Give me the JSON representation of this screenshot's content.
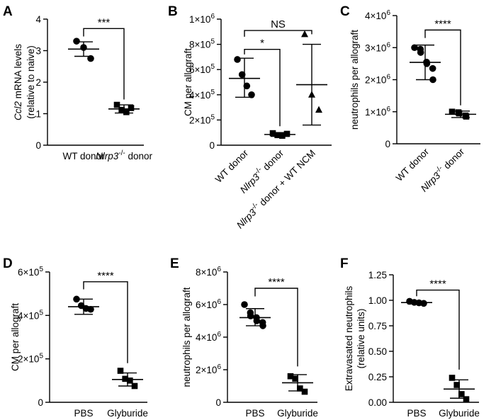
{
  "chart_data": [
    {
      "panel": "A",
      "type": "scatter",
      "ylabel_italic": "Ccl2",
      "ylabel_rest": " mRNA levels",
      "ylabel2": "(relative to naive)",
      "categories": [
        {
          "text": "WT donor",
          "sup": "",
          "after": ""
        },
        {
          "text": "Nlrp3",
          "sup": "-/-",
          "after": " donor",
          "italic": true
        }
      ],
      "ylim": [
        0,
        4
      ],
      "yticks": [
        {
          "v": 0,
          "t": "0"
        },
        {
          "v": 1,
          "t": "1"
        },
        {
          "v": 2,
          "t": "2"
        },
        {
          "v": 3,
          "t": "3"
        },
        {
          "v": 4,
          "t": "4"
        }
      ],
      "groups": [
        {
          "marker": "circle",
          "points": [
            3.3,
            3.1,
            2.75
          ],
          "mean": 3.05,
          "err": [
            2.82,
            3.28
          ]
        },
        {
          "marker": "square",
          "points": [
            1.28,
            1.12,
            1.05,
            1.18
          ],
          "mean": 1.15,
          "err": [
            1.02,
            1.28
          ]
        }
      ],
      "brackets": [
        {
          "from": 0,
          "to": 1,
          "label": "***",
          "y": 3.7,
          "drop_left": 3.45,
          "drop_right": 1.45
        }
      ]
    },
    {
      "panel": "B",
      "type": "scatter",
      "ylabel": "CM per allograft",
      "categories": [
        {
          "text": "WT donor",
          "sup": "",
          "after": ""
        },
        {
          "text": "Nlrp3",
          "sup": "-/-",
          "after": " donor",
          "italic": true
        },
        {
          "text": "Nlrp3",
          "sup": "-/-",
          "after": " donor + WT NCM",
          "italic": true
        }
      ],
      "ylim": [
        0,
        1000000
      ],
      "yticks": [
        {
          "v": 0,
          "t": "0"
        },
        {
          "v": 200000,
          "base": "2×10",
          "exp": "5"
        },
        {
          "v": 400000,
          "base": "4×10",
          "exp": "5"
        },
        {
          "v": 600000,
          "base": "6×10",
          "exp": "5"
        },
        {
          "v": 800000,
          "base": "8×10",
          "exp": "5"
        },
        {
          "v": 1000000,
          "base": "1×10",
          "exp": "6"
        }
      ],
      "groups": [
        {
          "marker": "circle",
          "points": [
            680000,
            560000,
            470000,
            400000
          ],
          "mean": 530000,
          "err": [
            380000,
            690000
          ]
        },
        {
          "marker": "square",
          "points": [
            95000,
            80000,
            75000,
            90000
          ],
          "mean": 85000,
          "err": [
            70000,
            100000
          ]
        },
        {
          "marker": "triangle",
          "points": [
            880000,
            400000,
            280000
          ],
          "mean": 480000,
          "err": [
            160000,
            800000
          ]
        }
      ],
      "brackets": [
        {
          "from": 0,
          "to": 1,
          "label": "*",
          "y": 760000,
          "drop_left": 720000,
          "drop_right": 150000
        },
        {
          "from": 0,
          "to": 2,
          "label": "NS",
          "y": 910000,
          "drop_left": 860000,
          "drop_right": 880000
        }
      ]
    },
    {
      "panel": "C",
      "type": "scatter",
      "ylabel": "neutrophils per allograft",
      "categories": [
        {
          "text": "WT donor",
          "sup": "",
          "after": ""
        },
        {
          "text": "Nlrp3",
          "sup": "-/-",
          "after": " donor",
          "italic": true
        }
      ],
      "ylim": [
        0,
        4000000
      ],
      "yticks": [
        {
          "v": 0,
          "t": "0"
        },
        {
          "v": 1000000,
          "base": "1×10",
          "exp": "6"
        },
        {
          "v": 2000000,
          "base": "2×10",
          "exp": "6"
        },
        {
          "v": 3000000,
          "base": "3×10",
          "exp": "6"
        },
        {
          "v": 4000000,
          "base": "4×10",
          "exp": "6"
        }
      ],
      "groups": [
        {
          "marker": "circle",
          "points": [
            3000000,
            2950000,
            2850000,
            2550000,
            2500000,
            2350000,
            2000000
          ],
          "mean": 2540000,
          "err": [
            2000000,
            3080000
          ]
        },
        {
          "marker": "square",
          "points": [
            1000000,
            980000,
            950000,
            880000,
            850000
          ],
          "mean": 920000,
          "err": [
            820000,
            1020000
          ]
        }
      ],
      "brackets": [
        {
          "from": 0,
          "to": 1,
          "label": "****",
          "y": 3550000,
          "drop_left": 3300000,
          "drop_right": 1200000
        }
      ]
    },
    {
      "panel": "D",
      "type": "scatter",
      "ylabel": "CM per allograft",
      "categories": [
        {
          "text": "PBS",
          "sup": "",
          "after": ""
        },
        {
          "text": "Glyburide",
          "sup": "",
          "after": ""
        }
      ],
      "ylim": [
        0,
        600000
      ],
      "yticks": [
        {
          "v": 0,
          "t": "0"
        },
        {
          "v": 200000,
          "base": "2×10",
          "exp": "5"
        },
        {
          "v": 400000,
          "base": "4×10",
          "exp": "5"
        },
        {
          "v": 600000,
          "base": "6×10",
          "exp": "5"
        }
      ],
      "groups": [
        {
          "marker": "circle",
          "points": [
            475000,
            445000,
            432000,
            428000
          ],
          "mean": 440000,
          "err": [
            405000,
            475000
          ]
        },
        {
          "marker": "square",
          "points": [
            145000,
            108000,
            100000,
            75000
          ],
          "mean": 105000,
          "err": [
            75000,
            135000
          ]
        }
      ],
      "brackets": [
        {
          "from": 0,
          "to": 1,
          "label": "****",
          "y": 555000,
          "drop_left": 520000,
          "drop_right": 180000
        }
      ]
    },
    {
      "panel": "E",
      "type": "scatter",
      "ylabel": "neutrophils per allograft",
      "categories": [
        {
          "text": "PBS",
          "sup": "",
          "after": ""
        },
        {
          "text": "Glyburide",
          "sup": "",
          "after": ""
        }
      ],
      "ylim": [
        0,
        8000000
      ],
      "yticks": [
        {
          "v": 0,
          "t": "0"
        },
        {
          "v": 2000000,
          "base": "2×10",
          "exp": "6"
        },
        {
          "v": 4000000,
          "base": "4×10",
          "exp": "6"
        },
        {
          "v": 6000000,
          "base": "6×10",
          "exp": "6"
        },
        {
          "v": 8000000,
          "base": "8×10",
          "exp": "6"
        }
      ],
      "groups": [
        {
          "marker": "circle",
          "points": [
            6000000,
            5500000,
            5300000,
            5200000,
            5000000,
            4900000,
            4700000
          ],
          "mean": 5200000,
          "err": [
            4700000,
            5750000
          ]
        },
        {
          "marker": "square",
          "points": [
            1600000,
            1450000,
            850000,
            650000
          ],
          "mean": 1200000,
          "err": [
            700000,
            1700000
          ]
        }
      ],
      "brackets": [
        {
          "from": 0,
          "to": 1,
          "label": "****",
          "y": 7000000,
          "drop_left": 6500000,
          "drop_right": 2200000
        }
      ]
    },
    {
      "panel": "F",
      "type": "scatter",
      "ylabel": "Extravasated neutrophils",
      "ylabel2": "(relative units)",
      "categories": [
        {
          "text": "PBS",
          "sup": "",
          "after": ""
        },
        {
          "text": "Glyburide",
          "sup": "",
          "after": ""
        }
      ],
      "ylim": [
        0,
        1.25
      ],
      "yticks": [
        {
          "v": 0,
          "t": "0.00"
        },
        {
          "v": 0.25,
          "t": "0.25"
        },
        {
          "v": 0.5,
          "t": "0.50"
        },
        {
          "v": 0.75,
          "t": "0.75"
        },
        {
          "v": 1.0,
          "t": "1.00"
        },
        {
          "v": 1.25,
          "t": "1.25"
        }
      ],
      "groups": [
        {
          "marker": "circle",
          "points": [
            0.99,
            0.98,
            0.975,
            0.97
          ],
          "mean": 0.978,
          "err": [
            0.965,
            0.99
          ]
        },
        {
          "marker": "square",
          "points": [
            0.24,
            0.17,
            0.08,
            0.03
          ],
          "mean": 0.13,
          "err": [
            0.04,
            0.22
          ]
        }
      ],
      "brackets": [
        {
          "from": 0,
          "to": 1,
          "label": "****",
          "y": 1.1,
          "drop_left": 1.04,
          "drop_right": 0.32
        }
      ]
    }
  ]
}
